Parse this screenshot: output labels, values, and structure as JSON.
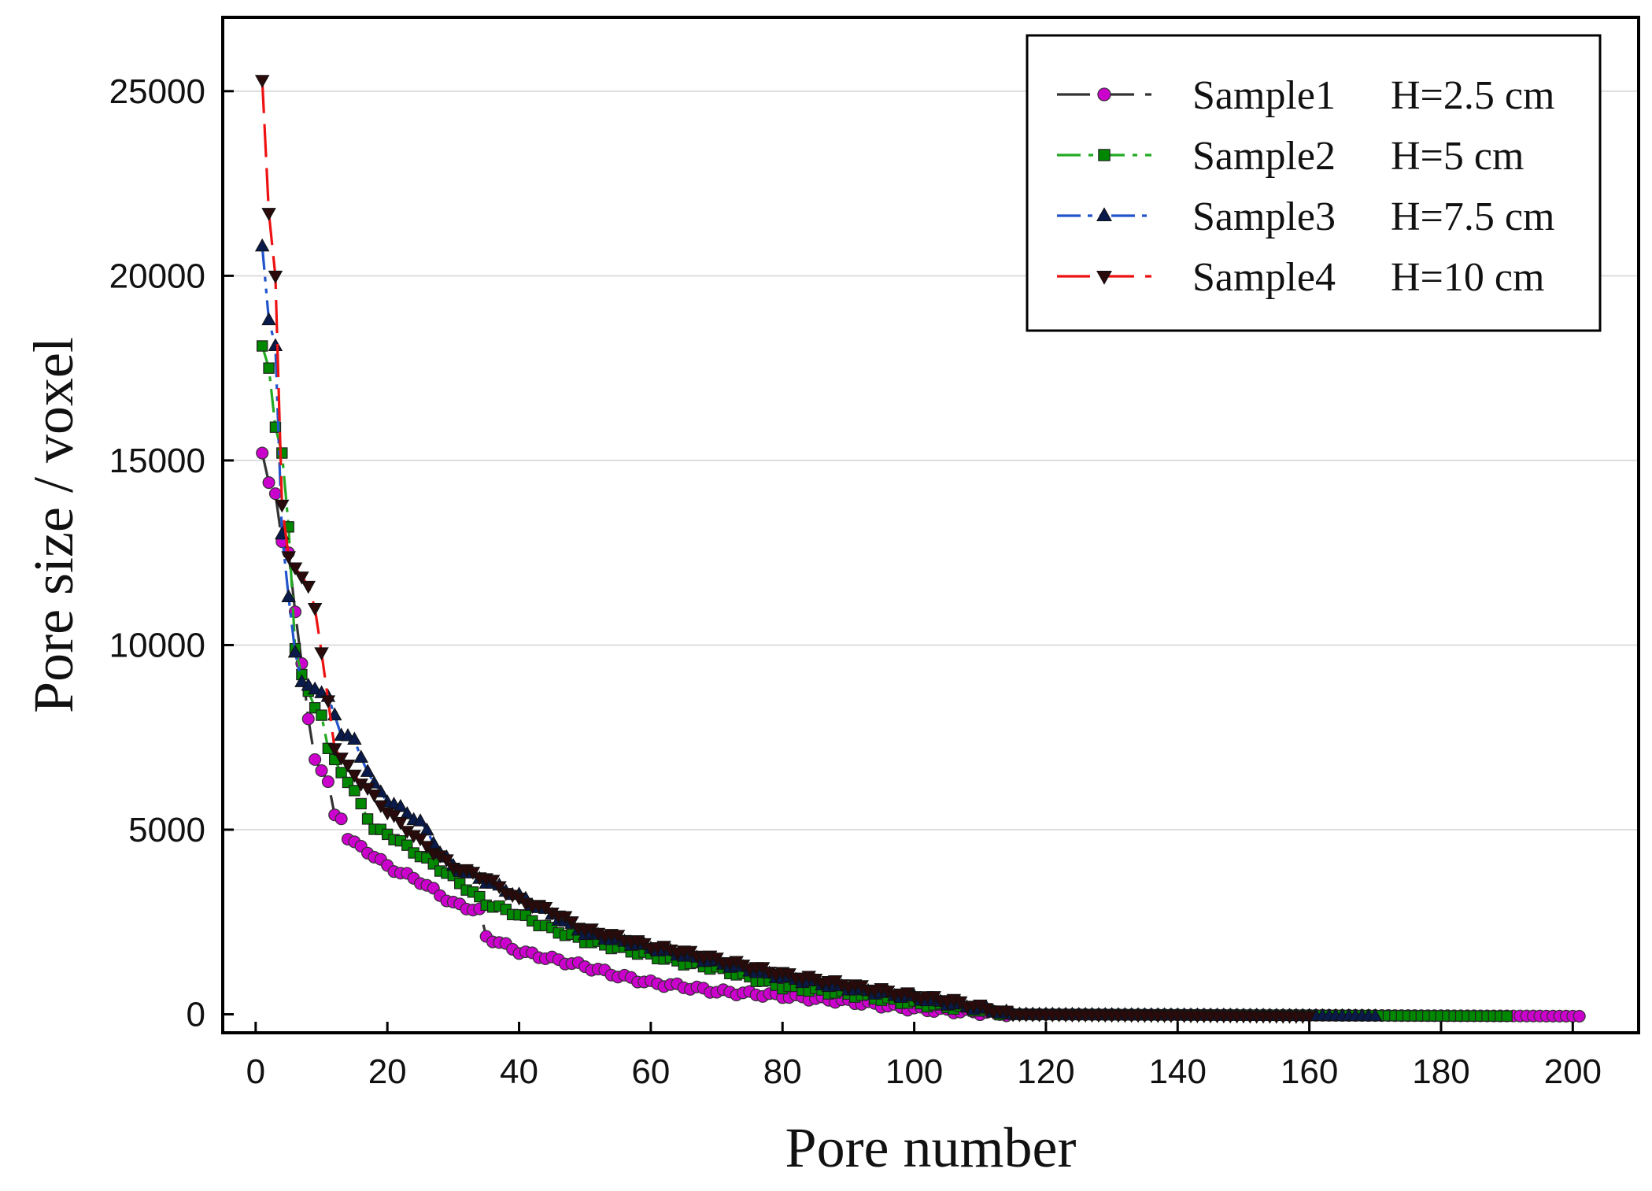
{
  "chart_data": {
    "type": "line",
    "title": "",
    "xlabel": "Pore number",
    "ylabel": "Pore size / voxel",
    "xlim": [
      -5,
      210
    ],
    "ylim": [
      -500,
      27000
    ],
    "xticks": [
      "0",
      "20",
      "40",
      "60",
      "80",
      "100",
      "120",
      "140",
      "160",
      "180",
      "200"
    ],
    "yticks": [
      "0",
      "5000",
      "10000",
      "15000",
      "20000",
      "25000"
    ],
    "grid": "horizontal",
    "legend_position": "top-right",
    "series": [
      {
        "name": "Sample1",
        "label": "H=2.5 cm",
        "color": "#cc00cc",
        "line_color": "#333333",
        "marker": "circle",
        "dash": "long-dash",
        "count": 201,
        "anchors": [
          [
            1,
            15200
          ],
          [
            2,
            14400
          ],
          [
            3,
            14100
          ],
          [
            4,
            12800
          ],
          [
            5,
            12500
          ],
          [
            6,
            10900
          ],
          [
            7,
            9500
          ],
          [
            8,
            8000
          ],
          [
            9,
            6900
          ],
          [
            10,
            6600
          ],
          [
            11,
            6300
          ],
          [
            12,
            5400
          ],
          [
            13,
            5300
          ],
          [
            14,
            4800
          ],
          [
            16,
            4500
          ],
          [
            18,
            4300
          ],
          [
            20,
            4000
          ],
          [
            25,
            3600
          ],
          [
            30,
            3000
          ],
          [
            34,
            2800
          ],
          [
            35,
            2100
          ],
          [
            40,
            1700
          ],
          [
            45,
            1500
          ],
          [
            50,
            1300
          ],
          [
            55,
            1050
          ],
          [
            60,
            850
          ],
          [
            65,
            750
          ],
          [
            70,
            620
          ],
          [
            80,
            500
          ],
          [
            90,
            350
          ],
          [
            100,
            150
          ],
          [
            110,
            50
          ],
          [
            115,
            0
          ],
          [
            201,
            -50
          ]
        ]
      },
      {
        "name": "Sample2",
        "label": "H=5 cm",
        "color": "#008800",
        "line_color": "#22aa22",
        "marker": "square",
        "dash": "dash-dot",
        "count": 190,
        "anchors": [
          [
            1,
            18100
          ],
          [
            2,
            17500
          ],
          [
            3,
            15900
          ],
          [
            4,
            15200
          ],
          [
            5,
            13200
          ],
          [
            6,
            9900
          ],
          [
            7,
            9200
          ],
          [
            9,
            8300
          ],
          [
            10,
            8100
          ],
          [
            11,
            7200
          ],
          [
            12,
            6900
          ],
          [
            14,
            6300
          ],
          [
            16,
            5700
          ],
          [
            18,
            5000
          ],
          [
            20,
            4900
          ],
          [
            25,
            4300
          ],
          [
            30,
            3700
          ],
          [
            35,
            3000
          ],
          [
            40,
            2700
          ],
          [
            45,
            2300
          ],
          [
            50,
            2000
          ],
          [
            55,
            1800
          ],
          [
            60,
            1600
          ],
          [
            65,
            1400
          ],
          [
            70,
            1250
          ],
          [
            80,
            750
          ],
          [
            90,
            550
          ],
          [
            100,
            300
          ],
          [
            110,
            120
          ],
          [
            115,
            0
          ],
          [
            190,
            -50
          ]
        ]
      },
      {
        "name": "Sample3",
        "label": "H=7.5 cm",
        "color": "#0a1a4a",
        "line_color": "#2255cc",
        "marker": "triangle-up",
        "dash": "dash-dot-dot",
        "count": 170,
        "anchors": [
          [
            1,
            20800
          ],
          [
            2,
            18800
          ],
          [
            3,
            18100
          ],
          [
            4,
            13000
          ],
          [
            5,
            11300
          ],
          [
            6,
            9800
          ],
          [
            7,
            9000
          ],
          [
            9,
            8800
          ],
          [
            10,
            8700
          ],
          [
            11,
            8600
          ],
          [
            13,
            7600
          ],
          [
            15,
            7400
          ],
          [
            18,
            6200
          ],
          [
            20,
            5800
          ],
          [
            25,
            5200
          ],
          [
            28,
            4400
          ],
          [
            30,
            4000
          ],
          [
            35,
            3600
          ],
          [
            40,
            3200
          ],
          [
            45,
            2700
          ],
          [
            50,
            2200
          ],
          [
            55,
            2000
          ],
          [
            60,
            1800
          ],
          [
            65,
            1600
          ],
          [
            70,
            1400
          ],
          [
            80,
            1000
          ],
          [
            90,
            700
          ],
          [
            100,
            450
          ],
          [
            110,
            150
          ],
          [
            115,
            0
          ],
          [
            170,
            -50
          ]
        ]
      },
      {
        "name": "Sample4",
        "label": "H=10 cm",
        "color": "#2a0a0a",
        "line_color": "#ee1111",
        "marker": "triangle-down",
        "dash": "long-dash",
        "count": 160,
        "anchors": [
          [
            1,
            25300
          ],
          [
            2,
            21700
          ],
          [
            3,
            20000
          ],
          [
            4,
            13800
          ],
          [
            5,
            12400
          ],
          [
            6,
            12100
          ],
          [
            8,
            11600
          ],
          [
            9,
            11000
          ],
          [
            10,
            9800
          ],
          [
            12,
            7200
          ],
          [
            14,
            6700
          ],
          [
            16,
            6300
          ],
          [
            20,
            5500
          ],
          [
            25,
            4700
          ],
          [
            30,
            4000
          ],
          [
            35,
            3700
          ],
          [
            40,
            3100
          ],
          [
            45,
            2800
          ],
          [
            50,
            2300
          ],
          [
            55,
            2100
          ],
          [
            60,
            1850
          ],
          [
            65,
            1700
          ],
          [
            70,
            1500
          ],
          [
            80,
            1100
          ],
          [
            90,
            800
          ],
          [
            100,
            500
          ],
          [
            105,
            400
          ],
          [
            110,
            200
          ],
          [
            115,
            0
          ],
          [
            160,
            -50
          ]
        ]
      }
    ]
  }
}
